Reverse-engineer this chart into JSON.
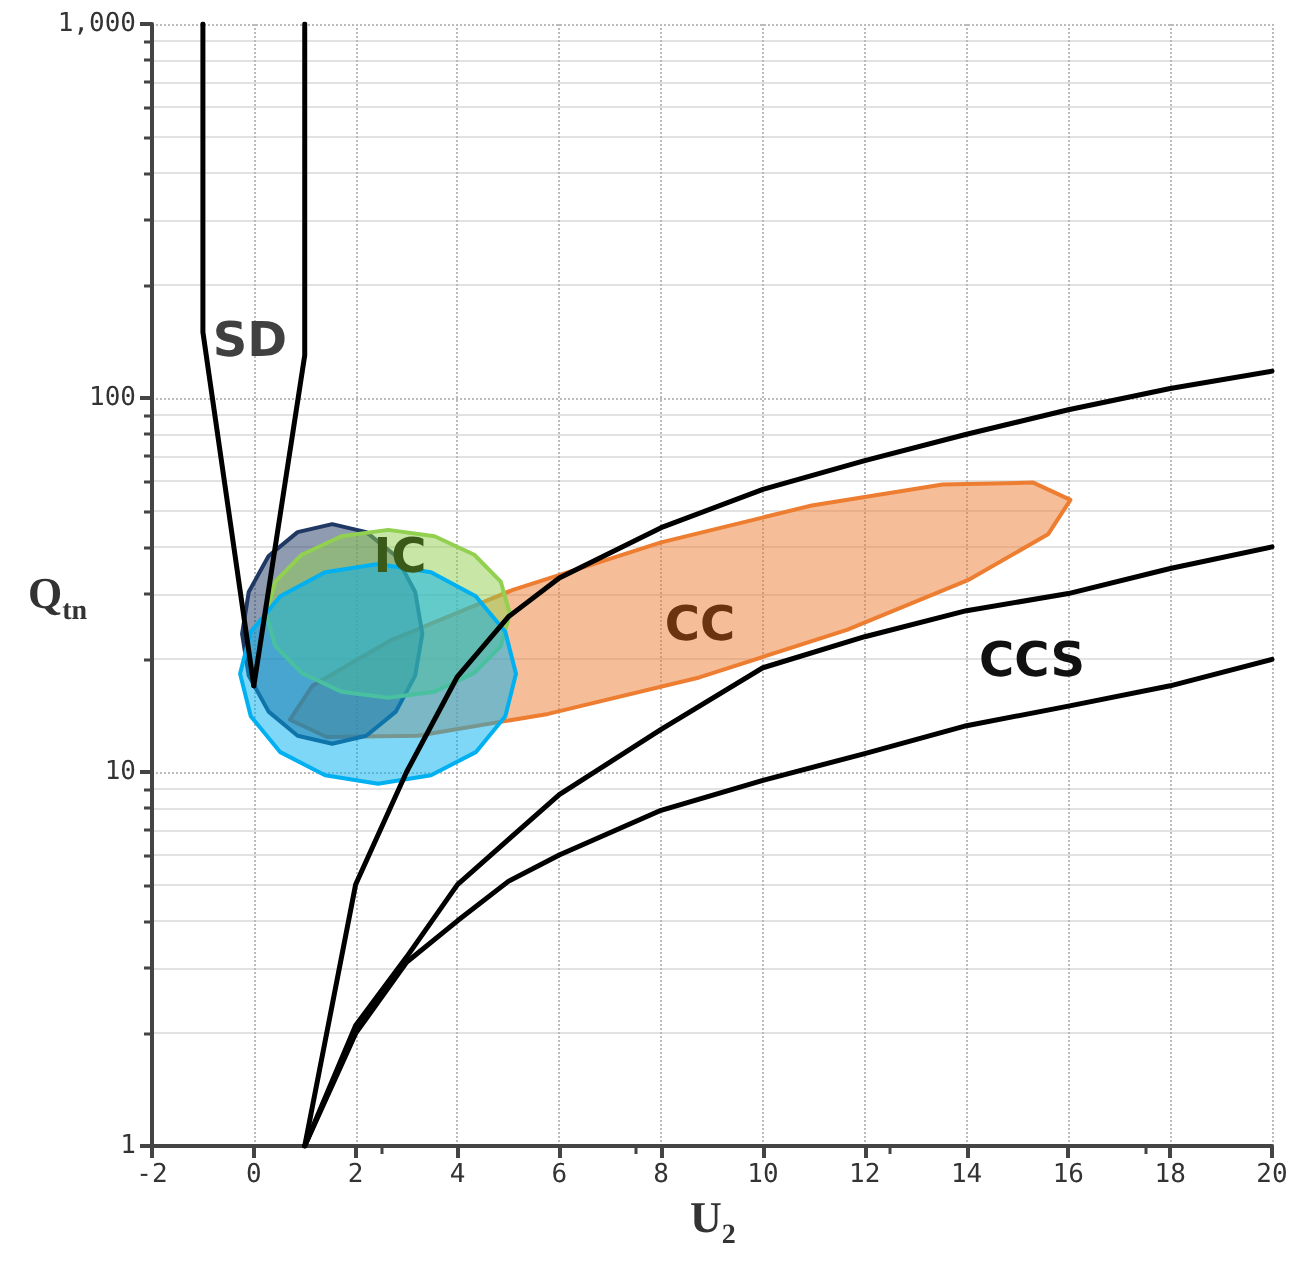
{
  "chart_data": {
    "type": "line",
    "xlabel": "U$_{2}$",
    "ylabel": "Q$_{tn}$",
    "log": "y",
    "grid": true,
    "marker": "none",
    "line_style": "solid",
    "xlim": [
      -2,
      20
    ],
    "xticks": [
      -2,
      0,
      2,
      4,
      6,
      8,
      10,
      12,
      14,
      16,
      18,
      20
    ],
    "ylim": [
      1,
      1000
    ],
    "yticks": [
      1,
      10,
      100,
      {
        "value": 1000,
        "label": "1,000"
      }
    ],
    "series": [
      {
        "color": "#000000",
        "x": [
          -1,
          -1,
          0
        ],
        "values": [
          1000,
          150,
          17
        ]
      },
      {
        "color": "#000000",
        "x": [
          1,
          1,
          0
        ],
        "values": [
          1000,
          130,
          17
        ]
      },
      {
        "color": "#000000",
        "x": [
          1,
          2,
          3,
          4,
          5,
          6,
          8,
          10,
          12,
          14,
          16,
          18,
          20
        ],
        "values": [
          1,
          5,
          10,
          18,
          26,
          33,
          45,
          57,
          68,
          80,
          93,
          106,
          118
        ]
      },
      {
        "color": "#000000",
        "x": [
          1,
          2,
          3,
          4,
          6,
          8,
          10,
          12,
          14,
          16,
          18,
          20
        ],
        "values": [
          1,
          2.1,
          3.2,
          5,
          8.7,
          13,
          19,
          23,
          27,
          30,
          35,
          40
        ]
      },
      {
        "color": "#000000",
        "x": [
          1,
          2,
          3,
          4,
          5,
          6,
          8,
          10,
          12,
          14,
          16,
          18,
          20
        ],
        "values": [
          1,
          2,
          3.1,
          4,
          5.1,
          6,
          7.9,
          9.5,
          11.2,
          13.3,
          15,
          17,
          20
        ]
      },
      {
        "type": "area",
        "color": "#ed7d31",
        "x": [
          16.04,
          15.6,
          14.05,
          11.65,
          8.75,
          5.78,
          3.22,
          1.43,
          0.71,
          1.15,
          2.69,
          5.09,
          8,
          10.96,
          13.53,
          15.31
        ],
        "values": [
          53.4,
          43.2,
          32.7,
          24,
          17.9,
          14.3,
          12.5,
          12.4,
          13.8,
          17,
          22.5,
          30.7,
          41.1,
          51.6,
          58.7,
          59.4
        ]
      },
      {
        "type": "area",
        "color": "#1f3864",
        "x": [
          3.31,
          3.17,
          2.79,
          2.21,
          1.54,
          0.86,
          0.29,
          -0.1,
          -0.23,
          -0.1,
          0.29,
          0.86,
          1.54,
          2.21,
          2.79,
          3.17
        ],
        "values": [
          23.4,
          30.3,
          37.8,
          43.8,
          46,
          43.8,
          37.8,
          30.3,
          23.4,
          18.1,
          14.5,
          12.5,
          11.9,
          12.5,
          14.5,
          18.1
        ]
      },
      {
        "type": "area",
        "color": "#92d050",
        "x": [
          5.03,
          4.85,
          4.33,
          3.55,
          2.64,
          1.72,
          0.94,
          0.42,
          0.24,
          0.42,
          0.94,
          1.72,
          2.64,
          3.55,
          4.33,
          4.85
        ],
        "values": [
          26.5,
          32.3,
          38.1,
          42.7,
          44.4,
          42.7,
          38.1,
          32.3,
          26.5,
          21.7,
          18.4,
          16.4,
          15.8,
          16.4,
          18.4,
          21.7
        ]
      },
      {
        "type": "area",
        "color": "#00b0f0",
        "x": [
          5.15,
          4.94,
          4.36,
          3.48,
          2.44,
          1.4,
          0.52,
          -0.06,
          -0.27,
          -0.06,
          0.52,
          1.4,
          2.44,
          3.48,
          4.36,
          4.94
        ],
        "values": [
          18.3,
          23.7,
          29.5,
          34.2,
          36,
          34.2,
          29.5,
          23.7,
          18.3,
          14.1,
          11.3,
          9.8,
          9.3,
          9.8,
          11.3,
          14.1
        ]
      }
    ],
    "annotations": [
      "SD",
      "IC",
      "CC",
      "CCS"
    ]
  }
}
